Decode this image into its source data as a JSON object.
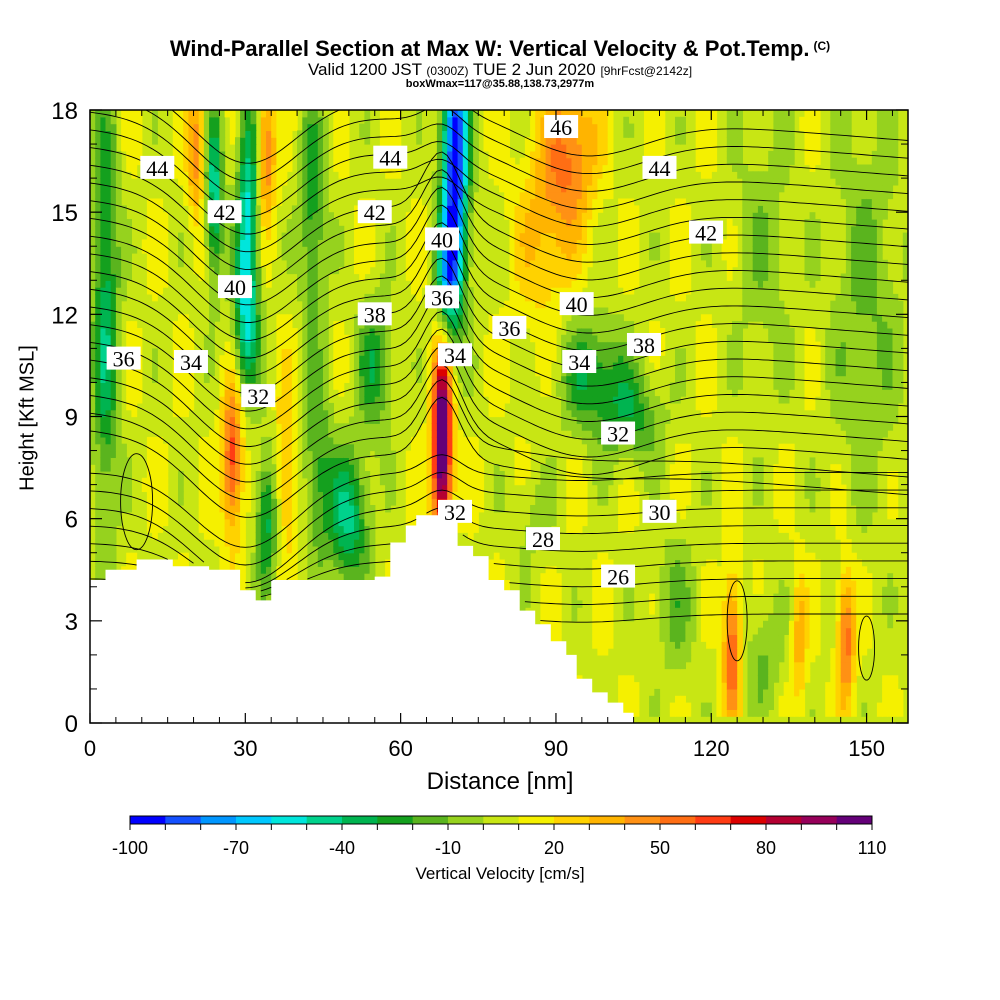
{
  "title": {
    "main": "Wind-Parallel Section at Max W: Vertical Velocity & Pot.Temp.",
    "copyright": "(C)",
    "valid_prefix": "Valid 1200 JST",
    "valid_z": "(0300Z)",
    "valid_date": "TUE 2 Jun 2020",
    "forecast": "[9hrFcst@2142z]",
    "box_info": "boxWmax=117@35.88,138.73,2977m"
  },
  "chart_data": {
    "type": "heatmap",
    "xlabel": "Distance [nm]",
    "ylabel": "Height [Kft MSL]",
    "xlim": [
      0,
      158
    ],
    "ylim": [
      0,
      18
    ],
    "x_ticks": [
      "0",
      "30",
      "60",
      "90",
      "120",
      "150"
    ],
    "y_ticks": [
      "0",
      "3",
      "6",
      "9",
      "12",
      "15",
      "18"
    ],
    "colorbar": {
      "label": "Vertical Velocity [cm/s]",
      "tick_labels": [
        "-100",
        "-70",
        "-40",
        "-10",
        "20",
        "50",
        "80",
        "110"
      ],
      "levels_min": -100,
      "levels_step": 10,
      "colors": [
        "#0000ff",
        "#1450ff",
        "#0096ff",
        "#00c8ff",
        "#00e6dc",
        "#00d28c",
        "#00b450",
        "#14a01e",
        "#5ab41e",
        "#96d21e",
        "#c8e614",
        "#f5f000",
        "#ffd200",
        "#ffb400",
        "#ff9114",
        "#ff6e14",
        "#ff3c14",
        "#dc0000",
        "#b40032",
        "#96005a",
        "#640078"
      ]
    },
    "theta_contour_labels": [
      {
        "label": "44",
        "x": 13,
        "y": 16.3
      },
      {
        "label": "42",
        "x": 26,
        "y": 15.0
      },
      {
        "label": "40",
        "x": 28,
        "y": 12.8
      },
      {
        "label": "36",
        "x": 6.5,
        "y": 10.7
      },
      {
        "label": "34",
        "x": 19.5,
        "y": 10.6
      },
      {
        "label": "32",
        "x": 32.5,
        "y": 9.6
      },
      {
        "label": "44",
        "x": 58,
        "y": 16.6
      },
      {
        "label": "42",
        "x": 55,
        "y": 15.0
      },
      {
        "label": "38",
        "x": 55,
        "y": 12.0
      },
      {
        "label": "40",
        "x": 68,
        "y": 14.2
      },
      {
        "label": "36",
        "x": 68,
        "y": 12.5
      },
      {
        "label": "34",
        "x": 70.5,
        "y": 10.8
      },
      {
        "label": "32",
        "x": 70.5,
        "y": 6.2
      },
      {
        "label": "46",
        "x": 91,
        "y": 17.5
      },
      {
        "label": "44",
        "x": 110,
        "y": 16.3
      },
      {
        "label": "42",
        "x": 119,
        "y": 14.4
      },
      {
        "label": "40",
        "x": 94,
        "y": 12.3
      },
      {
        "label": "36",
        "x": 81,
        "y": 11.6
      },
      {
        "label": "38",
        "x": 107,
        "y": 11.1
      },
      {
        "label": "34",
        "x": 94.5,
        "y": 10.6
      },
      {
        "label": "32",
        "x": 102,
        "y": 8.5
      },
      {
        "label": "30",
        "x": 110,
        "y": 6.2
      },
      {
        "label": "28",
        "x": 87.5,
        "y": 5.4
      },
      {
        "label": "26",
        "x": 102,
        "y": 4.3
      }
    ]
  }
}
